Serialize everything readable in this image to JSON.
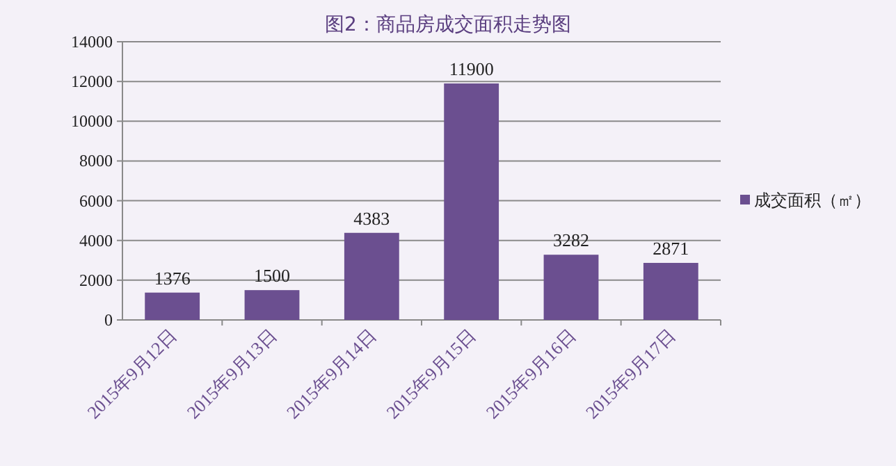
{
  "chart_data": {
    "type": "bar",
    "title": "图2：商品房成交面积走势图",
    "categories": [
      "2015年9月12日",
      "2015年9月13日",
      "2015年9月14日",
      "2015年9月15日",
      "2015年9月16日",
      "2015年9月17日"
    ],
    "series": [
      {
        "name": "成交面积（㎡）",
        "color": "#6b4f90",
        "values": [
          1376,
          1500,
          4383,
          11900,
          3282,
          2871
        ]
      }
    ],
    "ylim": [
      0,
      14000
    ],
    "yticks": [
      0,
      2000,
      4000,
      6000,
      8000,
      10000,
      12000,
      14000
    ],
    "grid": "y",
    "legend": "right",
    "data_labels": true
  }
}
